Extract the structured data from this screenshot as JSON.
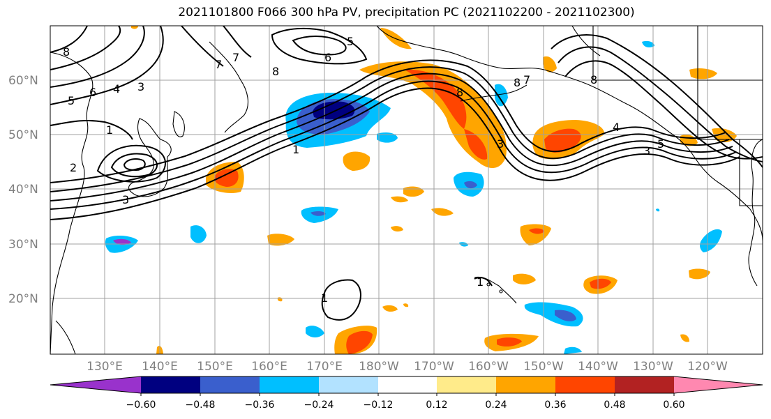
{
  "title": "2021101800 F066 300 hPa PV, precipitation PC (2021102200 - 2021102300)",
  "map": {
    "lat_labels": [
      "60°N",
      "50°N",
      "40°N",
      "30°N",
      "20°N"
    ],
    "lon_labels": [
      "130°E",
      "140°E",
      "150°E",
      "160°E",
      "170°E",
      "180°W",
      "170°W",
      "160°W",
      "150°W",
      "140°W",
      "130°W",
      "120°W"
    ],
    "gridline_color": "#a0a0a0",
    "pv_contour_labels": [
      "5",
      "6",
      "4",
      "3",
      "8",
      "6",
      "5",
      "1",
      "2",
      "3",
      "7",
      "8",
      "7",
      "8",
      "1",
      "3",
      "1",
      "7",
      "8",
      "8",
      "4",
      "3",
      "5",
      "1"
    ]
  },
  "colorbar": {
    "colors": [
      "#9932CC",
      "#000080",
      "#3A5FCD",
      "#00BFFF",
      "#B2E2FF",
      "#FFFFFF",
      "#FFEB8A",
      "#FFA500",
      "#FF4500",
      "#B22222",
      "#FF88B0"
    ],
    "tick_labels": [
      "−0.60",
      "−0.48",
      "−0.36",
      "−0.24",
      "−0.12",
      "0.12",
      "0.24",
      "0.36",
      "0.48",
      "0.60"
    ]
  }
}
